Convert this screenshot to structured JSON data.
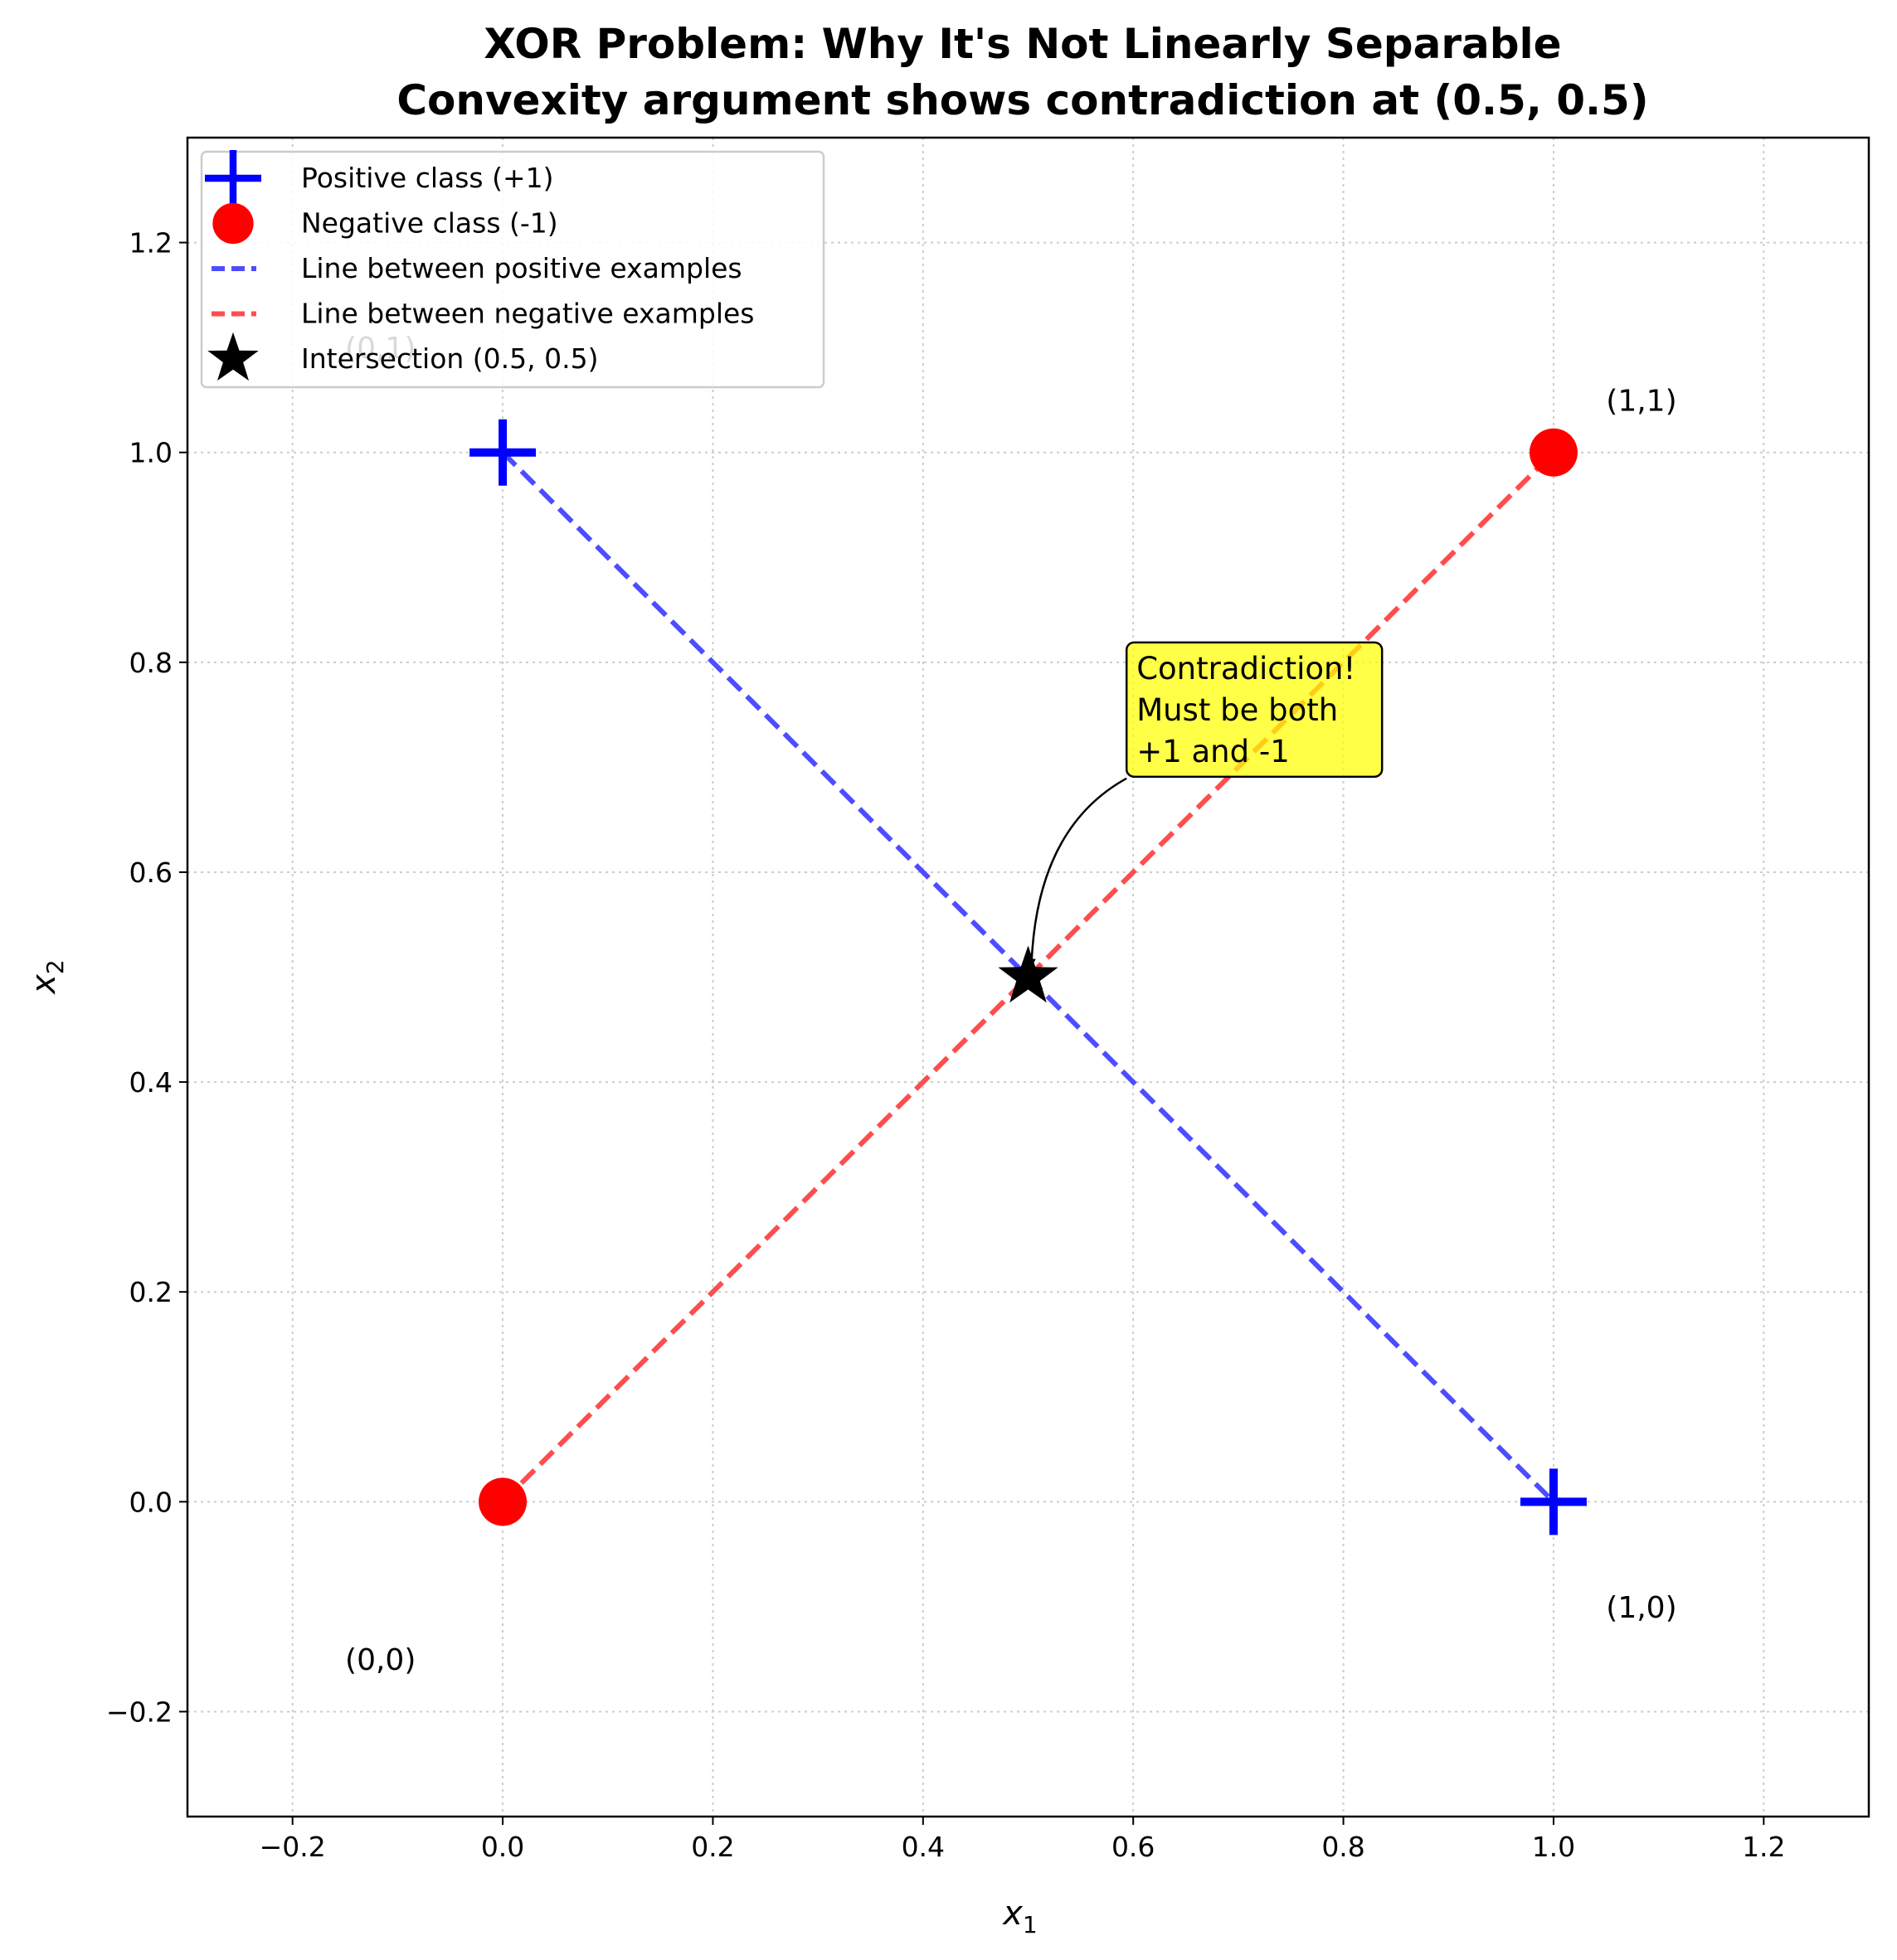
{
  "chart_data": {
    "type": "scatter",
    "title": "XOR Problem: Why It's Not Linearly Separable",
    "subtitle": "Convexity argument shows contradiction at (0.5, 0.5)",
    "xlabel": "x",
    "xlabel_sub": "1",
    "ylabel": "x",
    "ylabel_sub": "2",
    "xlim": [
      -0.3,
      1.3
    ],
    "ylim": [
      -0.3,
      1.3
    ],
    "grid": true,
    "legend_position": "top-left",
    "x_ticks": [
      -0.2,
      0.0,
      0.2,
      0.4,
      0.6,
      0.8,
      1.0,
      1.2
    ],
    "y_ticks": [
      -0.2,
      0.0,
      0.2,
      0.4,
      0.6,
      0.8,
      1.0,
      1.2
    ],
    "x_tick_labels": [
      "−0.2",
      "0.0",
      "0.2",
      "0.4",
      "0.6",
      "0.8",
      "1.0",
      "1.2"
    ],
    "y_tick_labels": [
      "−0.2",
      "0.0",
      "0.2",
      "0.4",
      "0.6",
      "0.8",
      "1.0",
      "1.2"
    ],
    "series": [
      {
        "name": "Positive class (+1)",
        "marker": "plus",
        "color": "#0000ff",
        "points": [
          {
            "x": 0,
            "y": 1
          },
          {
            "x": 1,
            "y": 0
          }
        ]
      },
      {
        "name": "Negative class (-1)",
        "marker": "circle",
        "color": "#ff0000",
        "points": [
          {
            "x": 0,
            "y": 0
          },
          {
            "x": 1,
            "y": 1
          }
        ]
      },
      {
        "name": "Line between positive examples",
        "marker": "dashed-line",
        "color": "#4d4dff",
        "points": [
          {
            "x": 0,
            "y": 1
          },
          {
            "x": 1,
            "y": 0
          }
        ]
      },
      {
        "name": "Line between negative examples",
        "marker": "dashed-line",
        "color": "#ff4d4d",
        "points": [
          {
            "x": 0,
            "y": 0
          },
          {
            "x": 1,
            "y": 1
          }
        ]
      },
      {
        "name": "Intersection (0.5, 0.5)",
        "marker": "star",
        "color": "#000000",
        "points": [
          {
            "x": 0.5,
            "y": 0.5
          }
        ]
      }
    ],
    "point_labels": [
      {
        "text": "(0,0)",
        "x": -0.15,
        "y": -0.15
      },
      {
        "text": "(0,1)",
        "x": -0.15,
        "y": 1.1
      },
      {
        "text": "(1,0)",
        "x": 1.05,
        "y": -0.1
      },
      {
        "text": "(1,1)",
        "x": 1.05,
        "y": 1.05
      }
    ],
    "annotation": {
      "lines": [
        "Contradiction!",
        "Must be both",
        "+1 and -1"
      ],
      "text_x": 0.6,
      "text_y": 0.8,
      "arrow_to_x": 0.5,
      "arrow_to_y": 0.5,
      "box_color": "#ffff00"
    }
  }
}
